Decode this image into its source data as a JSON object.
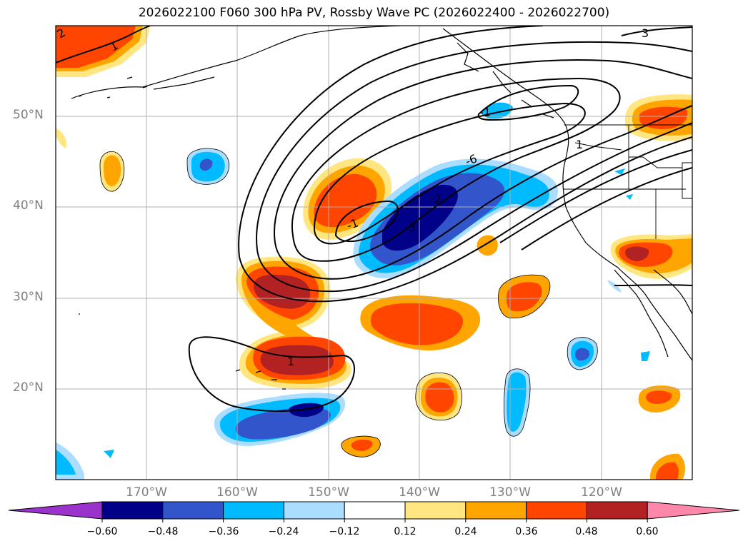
{
  "title": "2026022100 F060 300 hPa PV, Rossby Wave PC (2026022400 - 2026022700)",
  "lat_labels": [
    "50°N",
    "40°N",
    "30°N",
    "20°N"
  ],
  "lon_labels": [
    "170°W",
    "160°W",
    "150°W",
    "140°W",
    "130°W",
    "120°W"
  ],
  "contour_labels": [
    "2",
    "1",
    "3",
    "1",
    "-1",
    "-2",
    "-3",
    "-6",
    "1",
    "-1"
  ],
  "colorbar": {
    "tick_labels": [
      "−0.60",
      "−0.48",
      "−0.36",
      "−0.24",
      "−0.12",
      "0.12",
      "0.24",
      "0.36",
      "0.48",
      "0.60"
    ],
    "colors": [
      "#9933cc",
      "#000088",
      "#3355cc",
      "#00bbff",
      "#aaddff",
      "#ffffff",
      "#ffe680",
      "#ffa500",
      "#ff4500",
      "#b22222",
      "#ff88aa"
    ]
  },
  "colors": {
    "land_line": "#000000",
    "grid": "#b0b0b0",
    "label_gray": "#808080"
  }
}
